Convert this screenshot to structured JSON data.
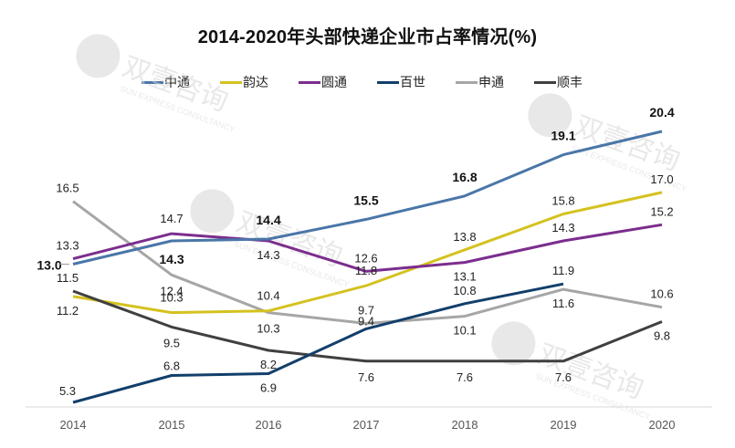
{
  "chart_data": {
    "type": "line",
    "title": "2014-2020年头部快递企业市占率情况(%)",
    "xlabel": "",
    "ylabel": "",
    "x": [
      "2014",
      "2015",
      "2016",
      "2017",
      "2018",
      "2019",
      "2020"
    ],
    "grid": false,
    "legend_position": "top",
    "series": [
      {
        "name": "中通",
        "color": "#4a76a8",
        "values": [
          13.0,
          14.3,
          14.4,
          15.5,
          16.8,
          19.1,
          20.4
        ],
        "label_style": "bold",
        "label_pos": "above"
      },
      {
        "name": "韵达",
        "color": "#d4c21f",
        "values": [
          11.2,
          10.3,
          10.4,
          11.8,
          13.8,
          15.8,
          17.0
        ],
        "label_style": "normal",
        "label_pos": "above"
      },
      {
        "name": "圆通",
        "color": "#7b2d8e",
        "values": [
          13.3,
          14.7,
          14.3,
          12.6,
          13.1,
          14.3,
          15.2
        ],
        "label_style": "normal",
        "label_pos": "mixed"
      },
      {
        "name": "百世",
        "color": "#123f6b",
        "values": [
          5.3,
          6.8,
          6.9,
          9.4,
          10.8,
          11.9,
          null
        ],
        "label_style": "normal",
        "label_pos": "mixed"
      },
      {
        "name": "申通",
        "color": "#a6a6a6",
        "values": [
          16.5,
          12.4,
          10.3,
          9.7,
          10.1,
          11.6,
          10.6
        ],
        "label_style": "normal",
        "label_pos": "mixed"
      },
      {
        "name": "顺丰",
        "color": "#404040",
        "values": [
          11.5,
          9.5,
          8.2,
          7.6,
          7.6,
          7.6,
          9.8
        ],
        "label_style": "normal",
        "label_pos": "below"
      }
    ],
    "ylim": [
      0,
      21
    ]
  },
  "watermark": {
    "text_cn": "双壹咨询",
    "text_en": "SUN EXPRESS CONSULTANCY"
  }
}
